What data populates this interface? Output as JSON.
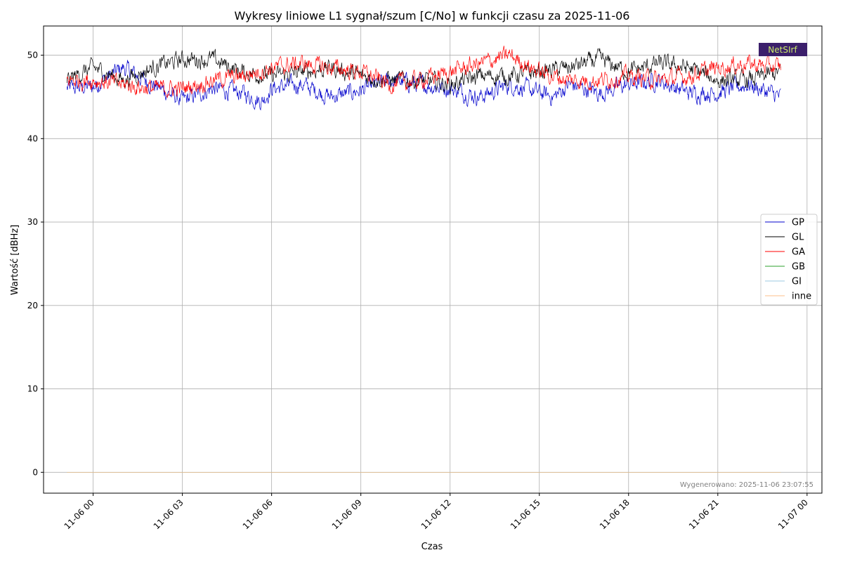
{
  "chart_data": {
    "type": "line",
    "title": "Wykresy liniowe L1 sygnał/szum [C/No] w funkcji czasu za 2025-11-06",
    "xlabel": "Czas",
    "ylabel": "Wartość [dBHz]",
    "x_range": [
      "2025-11-05 23:07",
      "2025-11-06 23:07"
    ],
    "xlim": [
      "2025-11-05 22:20",
      "2025-11-07 00:30"
    ],
    "ylim": [
      -2.5,
      53.5
    ],
    "x_ticks": [
      "11-06 00",
      "11-06 03",
      "11-06 06",
      "11-06 09",
      "11-06 12",
      "11-06 15",
      "11-06 18",
      "11-06 21",
      "11-07 00"
    ],
    "y_ticks": [
      0,
      10,
      20,
      30,
      40,
      50
    ],
    "grid": true,
    "legend_position": "center-right",
    "series": [
      {
        "name": "GP",
        "color": "#0000cc",
        "times": [
          "23:07",
          "00:00",
          "01:00",
          "02:00",
          "03:00",
          "04:00",
          "05:00",
          "05:40",
          "06:00",
          "07:00",
          "08:00",
          "09:00",
          "10:00",
          "11:00",
          "12:00",
          "13:00",
          "14:00",
          "15:00",
          "15:30",
          "16:00",
          "17:00",
          "18:00",
          "19:00",
          "20:00",
          "21:00",
          "22:00",
          "23:07"
        ],
        "values": [
          46.0,
          46.2,
          48.5,
          46.5,
          44.5,
          46.0,
          45.5,
          44.5,
          46.0,
          46.5,
          45.0,
          45.8,
          47.0,
          46.5,
          46.0,
          45.0,
          46.5,
          45.5,
          45.0,
          46.5,
          45.5,
          46.5,
          47.0,
          45.5,
          45.5,
          46.5,
          45.0
        ]
      },
      {
        "name": "GL",
        "color": "#000000",
        "times": [
          "23:07",
          "00:00",
          "01:00",
          "02:00",
          "03:00",
          "04:00",
          "05:00",
          "06:00",
          "07:00",
          "08:00",
          "09:00",
          "10:00",
          "11:00",
          "12:00",
          "13:00",
          "14:00",
          "15:00",
          "16:00",
          "17:00",
          "18:00",
          "19:00",
          "20:00",
          "21:00",
          "22:00",
          "23:07"
        ],
        "values": [
          47.0,
          48.5,
          47.0,
          48.5,
          49.5,
          49.5,
          48.0,
          47.5,
          48.0,
          48.5,
          47.5,
          47.0,
          47.0,
          46.5,
          47.5,
          47.5,
          48.0,
          48.5,
          49.5,
          48.0,
          49.0,
          48.5,
          47.0,
          47.0,
          48.0
        ]
      },
      {
        "name": "GA",
        "color": "#ff0000",
        "times": [
          "23:07",
          "00:00",
          "01:00",
          "02:00",
          "03:00",
          "04:00",
          "05:00",
          "06:00",
          "07:00",
          "08:00",
          "09:00",
          "10:00",
          "11:00",
          "12:00",
          "13:00",
          "14:00",
          "15:00",
          "16:00",
          "17:00",
          "18:00",
          "19:00",
          "20:00",
          "21:00",
          "22:00",
          "23:07"
        ],
        "values": [
          47.0,
          47.0,
          46.5,
          46.0,
          46.0,
          47.0,
          47.5,
          48.5,
          49.0,
          48.5,
          48.0,
          46.5,
          47.0,
          48.0,
          49.0,
          50.0,
          48.0,
          47.0,
          47.0,
          47.5,
          47.0,
          47.5,
          48.5,
          49.0,
          48.5
        ]
      },
      {
        "name": "GB",
        "color": "#2ca02c",
        "times": [
          "23:07",
          "23:07"
        ],
        "values": [
          0,
          0
        ]
      },
      {
        "name": "GI",
        "color": "#9ecae1",
        "times": [
          "23:07",
          "23:07"
        ],
        "values": [
          0,
          0
        ]
      },
      {
        "name": "inne",
        "color": "#fdbf8b",
        "times": [
          "23:07",
          "23:07"
        ],
        "values": [
          0,
          0
        ]
      }
    ],
    "annotation": "Wygenerowano: 2025-11-06 23:07:55"
  },
  "logo": {
    "text": "NetSIrf",
    "color": "#3b1f6b"
  }
}
